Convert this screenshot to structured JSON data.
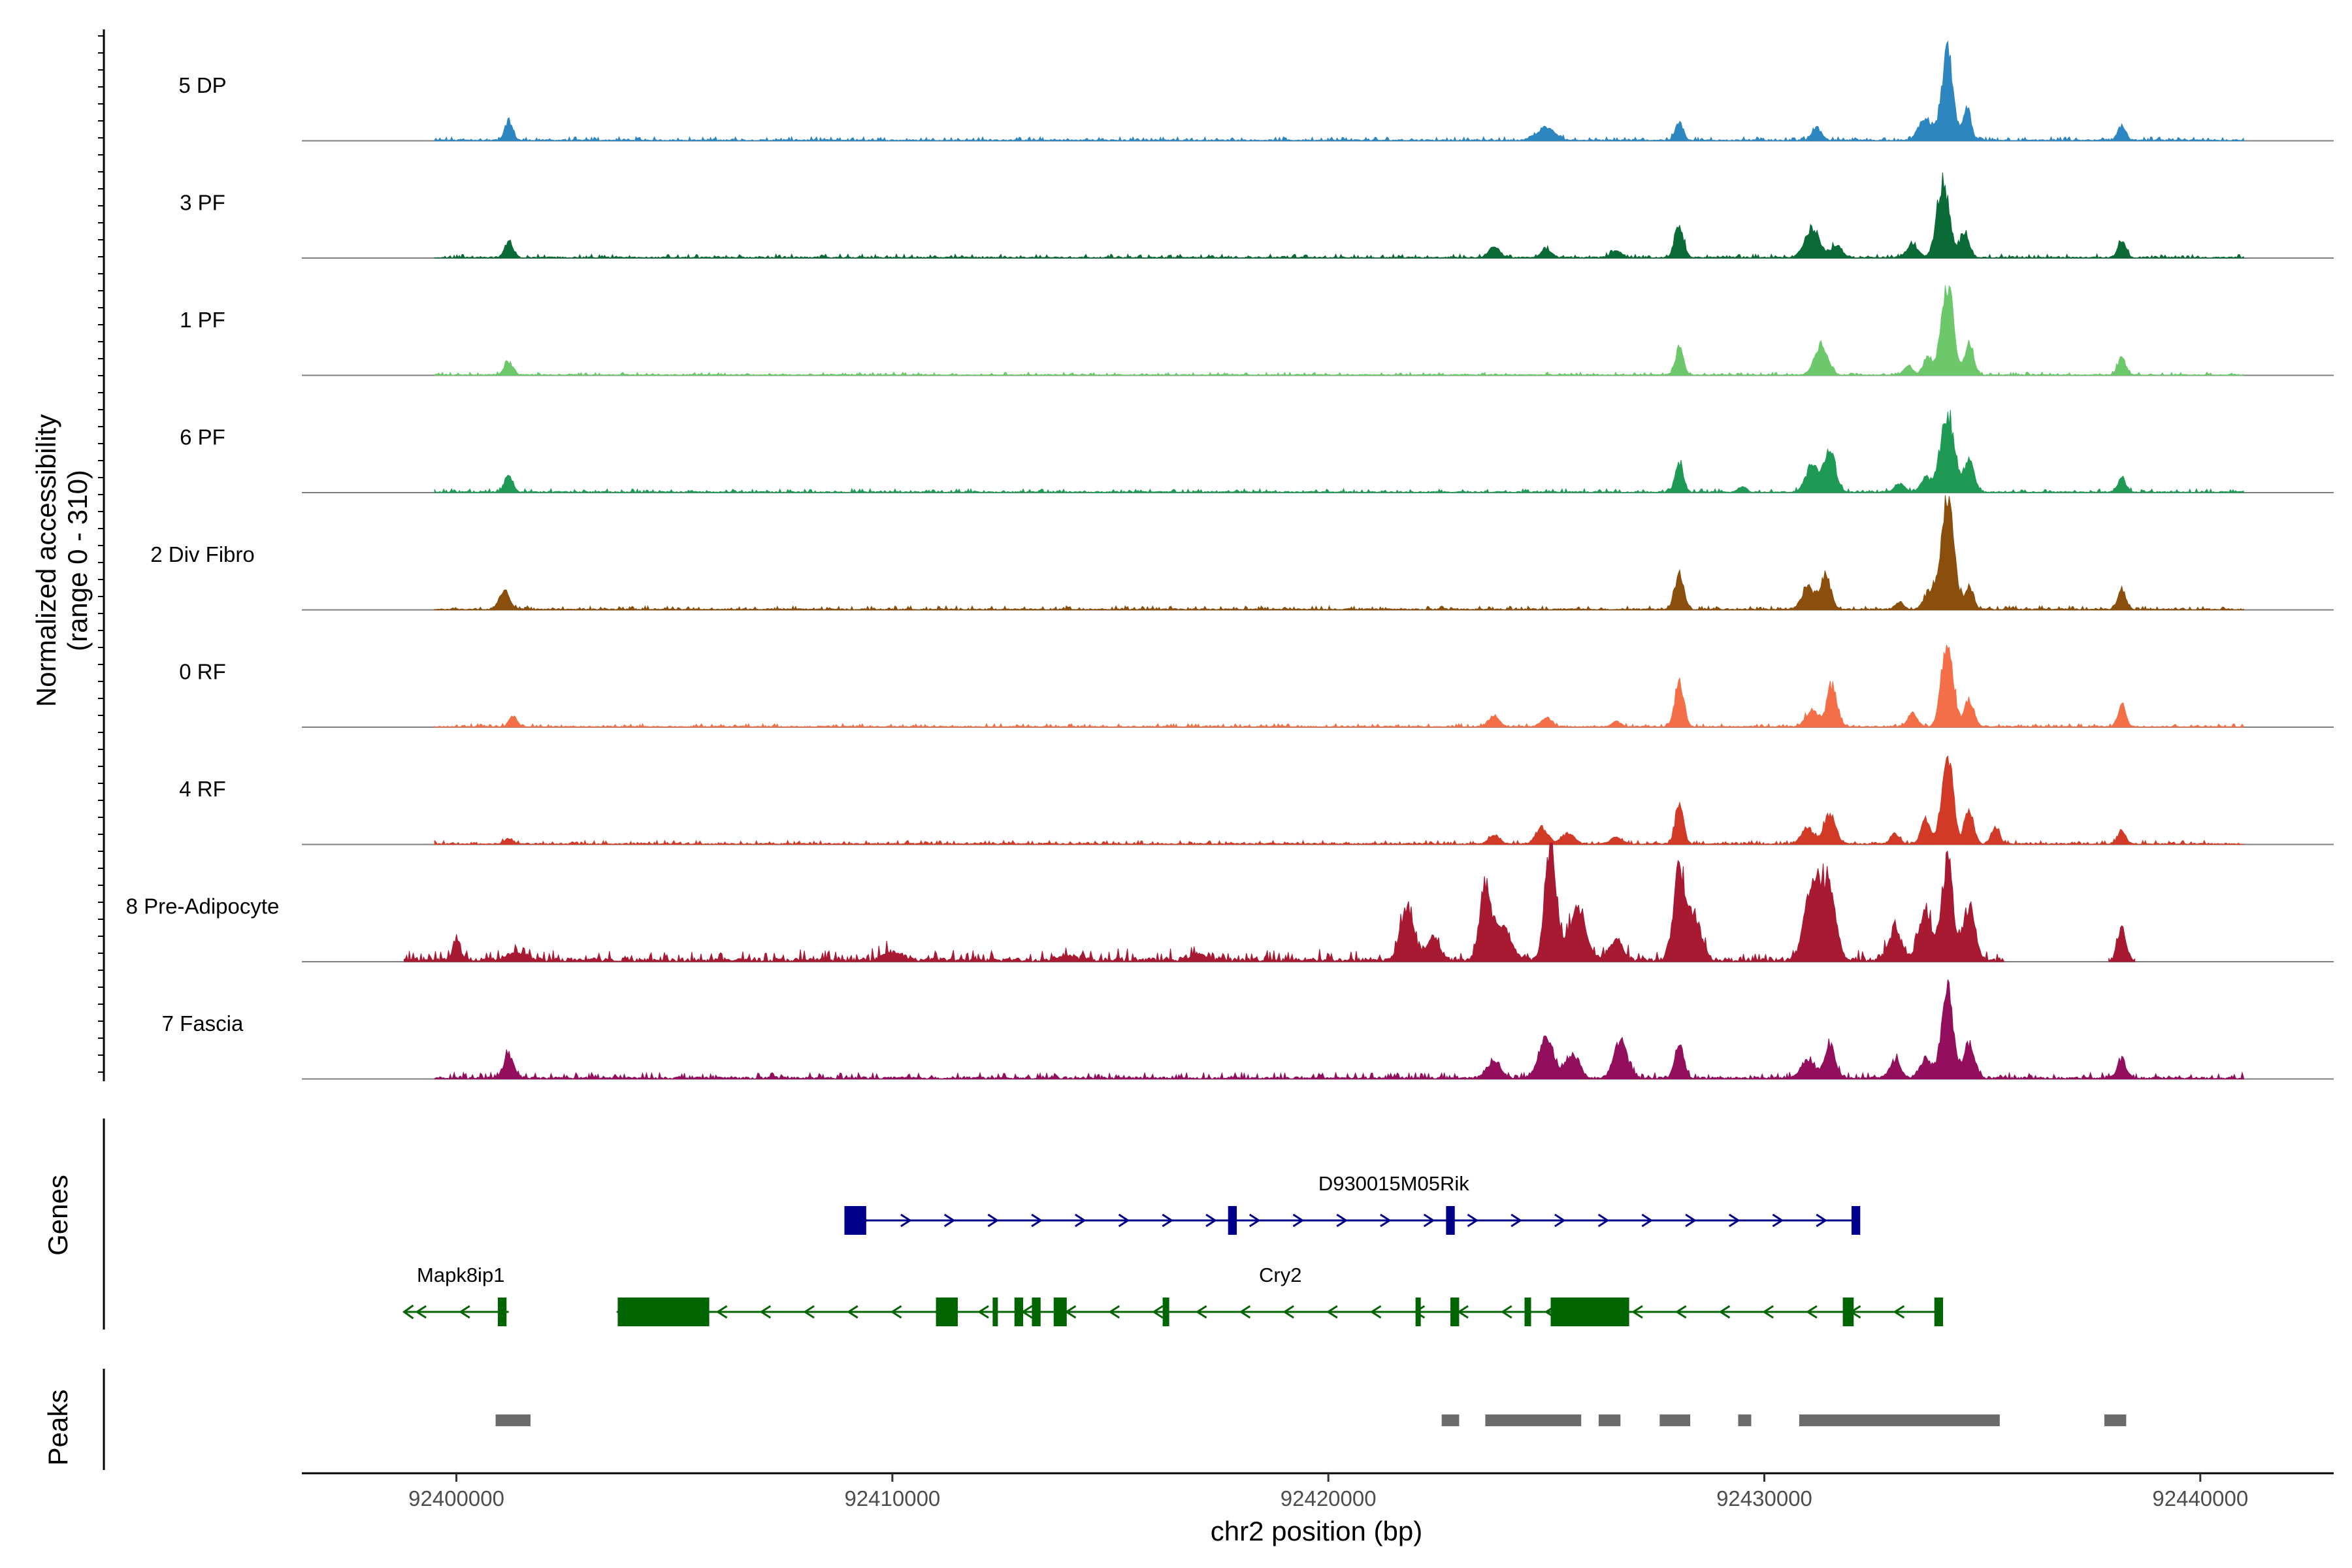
{
  "chart_data": {
    "type": "area",
    "title": "",
    "xlabel": "chr2 position (bp)",
    "ylabel": "Normalized accessibility\n(range 0 - 310)",
    "xlim": [
      92396500,
      92443000
    ],
    "ylim": [
      0,
      310
    ],
    "x_ticks": [
      92400000,
      92410000,
      92420000,
      92430000,
      92440000
    ],
    "grid": false,
    "legend": "none",
    "series": [
      {
        "name": "5 DP",
        "color": "#2E86C1",
        "peaks": [
          [
            92401200,
            0.22,
            90
          ],
          [
            92425000,
            0.14,
            200
          ],
          [
            92428050,
            0.2,
            90
          ],
          [
            92431200,
            0.14,
            110
          ],
          [
            92433700,
            0.25,
            150
          ],
          [
            92434200,
            1.0,
            130
          ],
          [
            92434650,
            0.35,
            90
          ],
          [
            92438200,
            0.17,
            90
          ]
        ],
        "range": [
          92399500,
          92441000
        ],
        "noise": 0.015
      },
      {
        "name": "3 PF",
        "color": "#0B6B36",
        "peaks": [
          [
            92401200,
            0.18,
            90
          ],
          [
            92423800,
            0.12,
            120
          ],
          [
            92425000,
            0.09,
            120
          ],
          [
            92426600,
            0.08,
            120
          ],
          [
            92428050,
            0.36,
            100
          ],
          [
            92431100,
            0.32,
            170
          ],
          [
            92431650,
            0.14,
            120
          ],
          [
            92433400,
            0.16,
            120
          ],
          [
            92434100,
            0.85,
            140
          ],
          [
            92434600,
            0.3,
            100
          ],
          [
            92438200,
            0.2,
            90
          ]
        ],
        "range": [
          92399500,
          92441000
        ],
        "noise": 0.015
      },
      {
        "name": "1 PF",
        "color": "#6DC86B",
        "peaks": [
          [
            92401200,
            0.14,
            100
          ],
          [
            92428050,
            0.3,
            90
          ],
          [
            92431300,
            0.34,
            150
          ],
          [
            92433300,
            0.1,
            100
          ],
          [
            92433750,
            0.2,
            100
          ],
          [
            92434200,
            1.0,
            140
          ],
          [
            92434700,
            0.35,
            100
          ],
          [
            92438200,
            0.2,
            90
          ]
        ],
        "range": [
          92399500,
          92441000
        ],
        "noise": 0.012
      },
      {
        "name": "6 PF",
        "color": "#1E9A55",
        "peaks": [
          [
            92401200,
            0.2,
            90
          ],
          [
            92428050,
            0.34,
            90
          ],
          [
            92429500,
            0.06,
            90
          ],
          [
            92431100,
            0.3,
            150
          ],
          [
            92431500,
            0.45,
            130
          ],
          [
            92433100,
            0.1,
            110
          ],
          [
            92433700,
            0.16,
            110
          ],
          [
            92434200,
            0.9,
            160
          ],
          [
            92434700,
            0.34,
            110
          ],
          [
            92438200,
            0.15,
            90
          ]
        ],
        "range": [
          92399500,
          92441000
        ],
        "noise": 0.015
      },
      {
        "name": "2 Div Fibro",
        "color": "#8A4F0C",
        "peaks": [
          [
            92401100,
            0.2,
            120
          ],
          [
            92428050,
            0.42,
            100
          ],
          [
            92431000,
            0.25,
            140
          ],
          [
            92431400,
            0.38,
            120
          ],
          [
            92433100,
            0.08,
            100
          ],
          [
            92433800,
            0.2,
            130
          ],
          [
            92434200,
            1.2,
            150
          ],
          [
            92434700,
            0.25,
            100
          ],
          [
            92438200,
            0.23,
            90
          ]
        ],
        "range": [
          92399500,
          92441000
        ],
        "noise": 0.015
      },
      {
        "name": "0 RF",
        "color": "#F46F47",
        "peaks": [
          [
            92401300,
            0.12,
            90
          ],
          [
            92423800,
            0.12,
            120
          ],
          [
            92425000,
            0.1,
            120
          ],
          [
            92426600,
            0.06,
            100
          ],
          [
            92428050,
            0.52,
            100
          ],
          [
            92431100,
            0.2,
            140
          ],
          [
            92431550,
            0.45,
            120
          ],
          [
            92433400,
            0.14,
            110
          ],
          [
            92434200,
            1.0,
            130
          ],
          [
            92434700,
            0.3,
            110
          ],
          [
            92438200,
            0.25,
            90
          ]
        ],
        "range": [
          92399500,
          92441000
        ],
        "noise": 0.013
      },
      {
        "name": "4 RF",
        "color": "#D13A26",
        "peaks": [
          [
            92401200,
            0.06,
            100
          ],
          [
            92423800,
            0.1,
            120
          ],
          [
            92424900,
            0.18,
            140
          ],
          [
            92425500,
            0.12,
            140
          ],
          [
            92426600,
            0.08,
            120
          ],
          [
            92428050,
            0.48,
            90
          ],
          [
            92431000,
            0.18,
            140
          ],
          [
            92431500,
            0.34,
            130
          ],
          [
            92433000,
            0.12,
            100
          ],
          [
            92433700,
            0.28,
            100
          ],
          [
            92434200,
            1.0,
            130
          ],
          [
            92434700,
            0.4,
            100
          ],
          [
            92435300,
            0.2,
            90
          ],
          [
            92438200,
            0.15,
            90
          ]
        ],
        "range": [
          92399500,
          92441000
        ],
        "noise": 0.015
      },
      {
        "name": "8 Pre-Adipocyte",
        "color": "#A81932",
        "peaks": [
          [
            92400000,
            0.25,
            80
          ],
          [
            92401400,
            0.08,
            200
          ],
          [
            92410000,
            0.1,
            200
          ],
          [
            92414000,
            0.06,
            200
          ],
          [
            92417000,
            0.06,
            200
          ],
          [
            92421800,
            0.6,
            150
          ],
          [
            92422400,
            0.25,
            150
          ],
          [
            92423600,
            0.8,
            130
          ],
          [
            92424000,
            0.35,
            200
          ],
          [
            92425100,
            1.3,
            130
          ],
          [
            92425700,
            0.55,
            200
          ],
          [
            92426600,
            0.24,
            150
          ],
          [
            92428050,
            1.0,
            130
          ],
          [
            92428400,
            0.45,
            160
          ],
          [
            92431000,
            0.42,
            150
          ],
          [
            92431200,
            0.65,
            150
          ],
          [
            92431500,
            0.75,
            150
          ],
          [
            92433000,
            0.35,
            150
          ],
          [
            92433700,
            0.55,
            150
          ],
          [
            92434200,
            1.1,
            130
          ],
          [
            92434700,
            0.6,
            130
          ],
          [
            92438200,
            0.38,
            90
          ]
        ],
        "range": [
          92398800,
          92435500
        ],
        "noise": 0.045,
        "extra_end": [
          92437900,
          92438500
        ]
      },
      {
        "name": "7 Fascia",
        "color": "#930E5C",
        "peaks": [
          [
            92401200,
            0.25,
            120
          ],
          [
            92423800,
            0.2,
            150
          ],
          [
            92425000,
            0.45,
            170
          ],
          [
            92425600,
            0.28,
            150
          ],
          [
            92426700,
            0.42,
            150
          ],
          [
            92428050,
            0.38,
            100
          ],
          [
            92431000,
            0.22,
            150
          ],
          [
            92431500,
            0.34,
            130
          ],
          [
            92433000,
            0.2,
            120
          ],
          [
            92433700,
            0.22,
            130
          ],
          [
            92434200,
            1.0,
            130
          ],
          [
            92434700,
            0.4,
            120
          ],
          [
            92438200,
            0.23,
            90
          ]
        ],
        "range": [
          92399500,
          92441000
        ],
        "noise": 0.025
      }
    ],
    "genes": [
      {
        "name": "D930015M05Rik",
        "strand": "+",
        "color": "#00008B",
        "start": 92408900,
        "end": 92432100,
        "exons": [
          [
            92408900,
            92409400
          ],
          [
            92417700,
            92417900
          ],
          [
            92422700,
            92422900
          ],
          [
            92432000,
            92432200
          ]
        ]
      },
      {
        "name": "Mapk8ip1",
        "strand": "-",
        "color": "#006400",
        "start": 92398800,
        "end": 92401200,
        "exons": [
          [
            92400950,
            92401150
          ]
        ]
      },
      {
        "name": "Cry2",
        "strand": "-",
        "color": "#006400",
        "start": 92403700,
        "end": 92434100,
        "exons": [
          [
            92403700,
            92405800
          ],
          [
            92411000,
            92411500
          ],
          [
            92412300,
            92412400
          ],
          [
            92412800,
            92413000
          ],
          [
            92413200,
            92413400
          ],
          [
            92413700,
            92414000
          ],
          [
            92416200,
            92416350
          ],
          [
            92422000,
            92422080
          ],
          [
            92422800,
            92423000
          ],
          [
            92424500,
            92424650
          ],
          [
            92425100,
            92426900
          ],
          [
            92431800,
            92432050
          ],
          [
            92433900,
            92434100
          ]
        ]
      }
    ],
    "peaks": [
      [
        92400900,
        92401700
      ],
      [
        92422600,
        92423000
      ],
      [
        92423600,
        92425800
      ],
      [
        92426200,
        92426700
      ],
      [
        92427600,
        92428300
      ],
      [
        92429400,
        92429700
      ],
      [
        92430800,
        92435400
      ],
      [
        92437800,
        92438300
      ]
    ],
    "panels": {
      "genes": "Genes",
      "peaks": "Peaks"
    }
  }
}
